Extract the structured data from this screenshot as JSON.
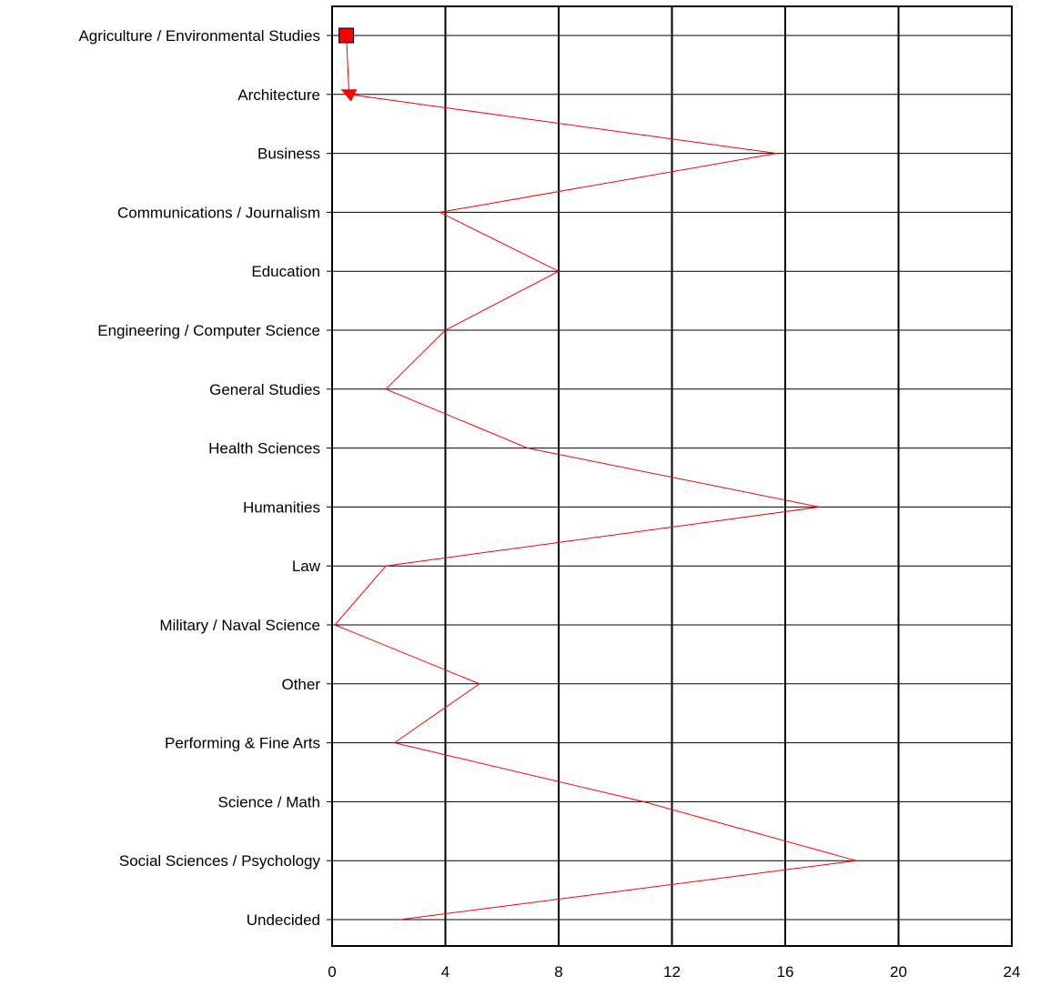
{
  "chart_data": {
    "type": "line",
    "orientation": "horizontal",
    "categories": [
      "Agriculture / Environmental Studies",
      "Architecture",
      "Business",
      "Communications / Journalism",
      "Education",
      "Engineering / Computer Science",
      "General Studies",
      "Health Sciences",
      "Humanities",
      "Law",
      "Military / Naval Science",
      "Other",
      "Performing & Fine Arts",
      "Science / Math",
      "Social Sciences / Psychology",
      "Undecided"
    ],
    "series": [
      {
        "color": "#ff0000",
        "values": [
          0.5,
          0.6,
          15.7,
          3.8,
          8.0,
          4.0,
          1.9,
          6.9,
          17.2,
          1.9,
          0.1,
          5.2,
          2.2,
          11.0,
          18.5,
          2.4
        ]
      }
    ],
    "x_ticks": [
      "0",
      "4",
      "8",
      "12",
      "16",
      "20",
      "24"
    ],
    "xlim": [
      0,
      24
    ],
    "grid": true,
    "xlabel": "",
    "ylabel": "",
    "title": ""
  }
}
